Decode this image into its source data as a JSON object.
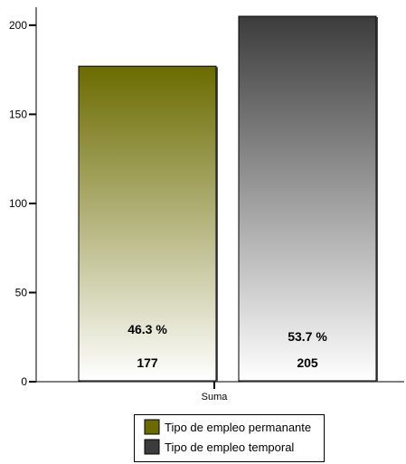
{
  "chart_data": {
    "type": "bar",
    "categories": [
      "Suma"
    ],
    "series": [
      {
        "name": "Tipo de empleo permanante",
        "values": [
          177
        ],
        "percent_label": "46.3 %",
        "value_label": "177",
        "color_top": "#6b6b00",
        "color_bottom": "#ffffff"
      },
      {
        "name": "Tipo de empleo temporal",
        "values": [
          205
        ],
        "percent_label": "53.7 %",
        "value_label": "205",
        "color_top": "#3c3c3c",
        "color_bottom": "#ffffff"
      }
    ],
    "ylim": [
      0,
      205
    ],
    "yticks": [
      0,
      50,
      100,
      150,
      200
    ],
    "ytick_labels": [
      "0",
      "50",
      "100",
      "150",
      "200"
    ],
    "grid": false,
    "legend_position": "bottom-center",
    "title": "",
    "xlabel": "",
    "ylabel": ""
  }
}
